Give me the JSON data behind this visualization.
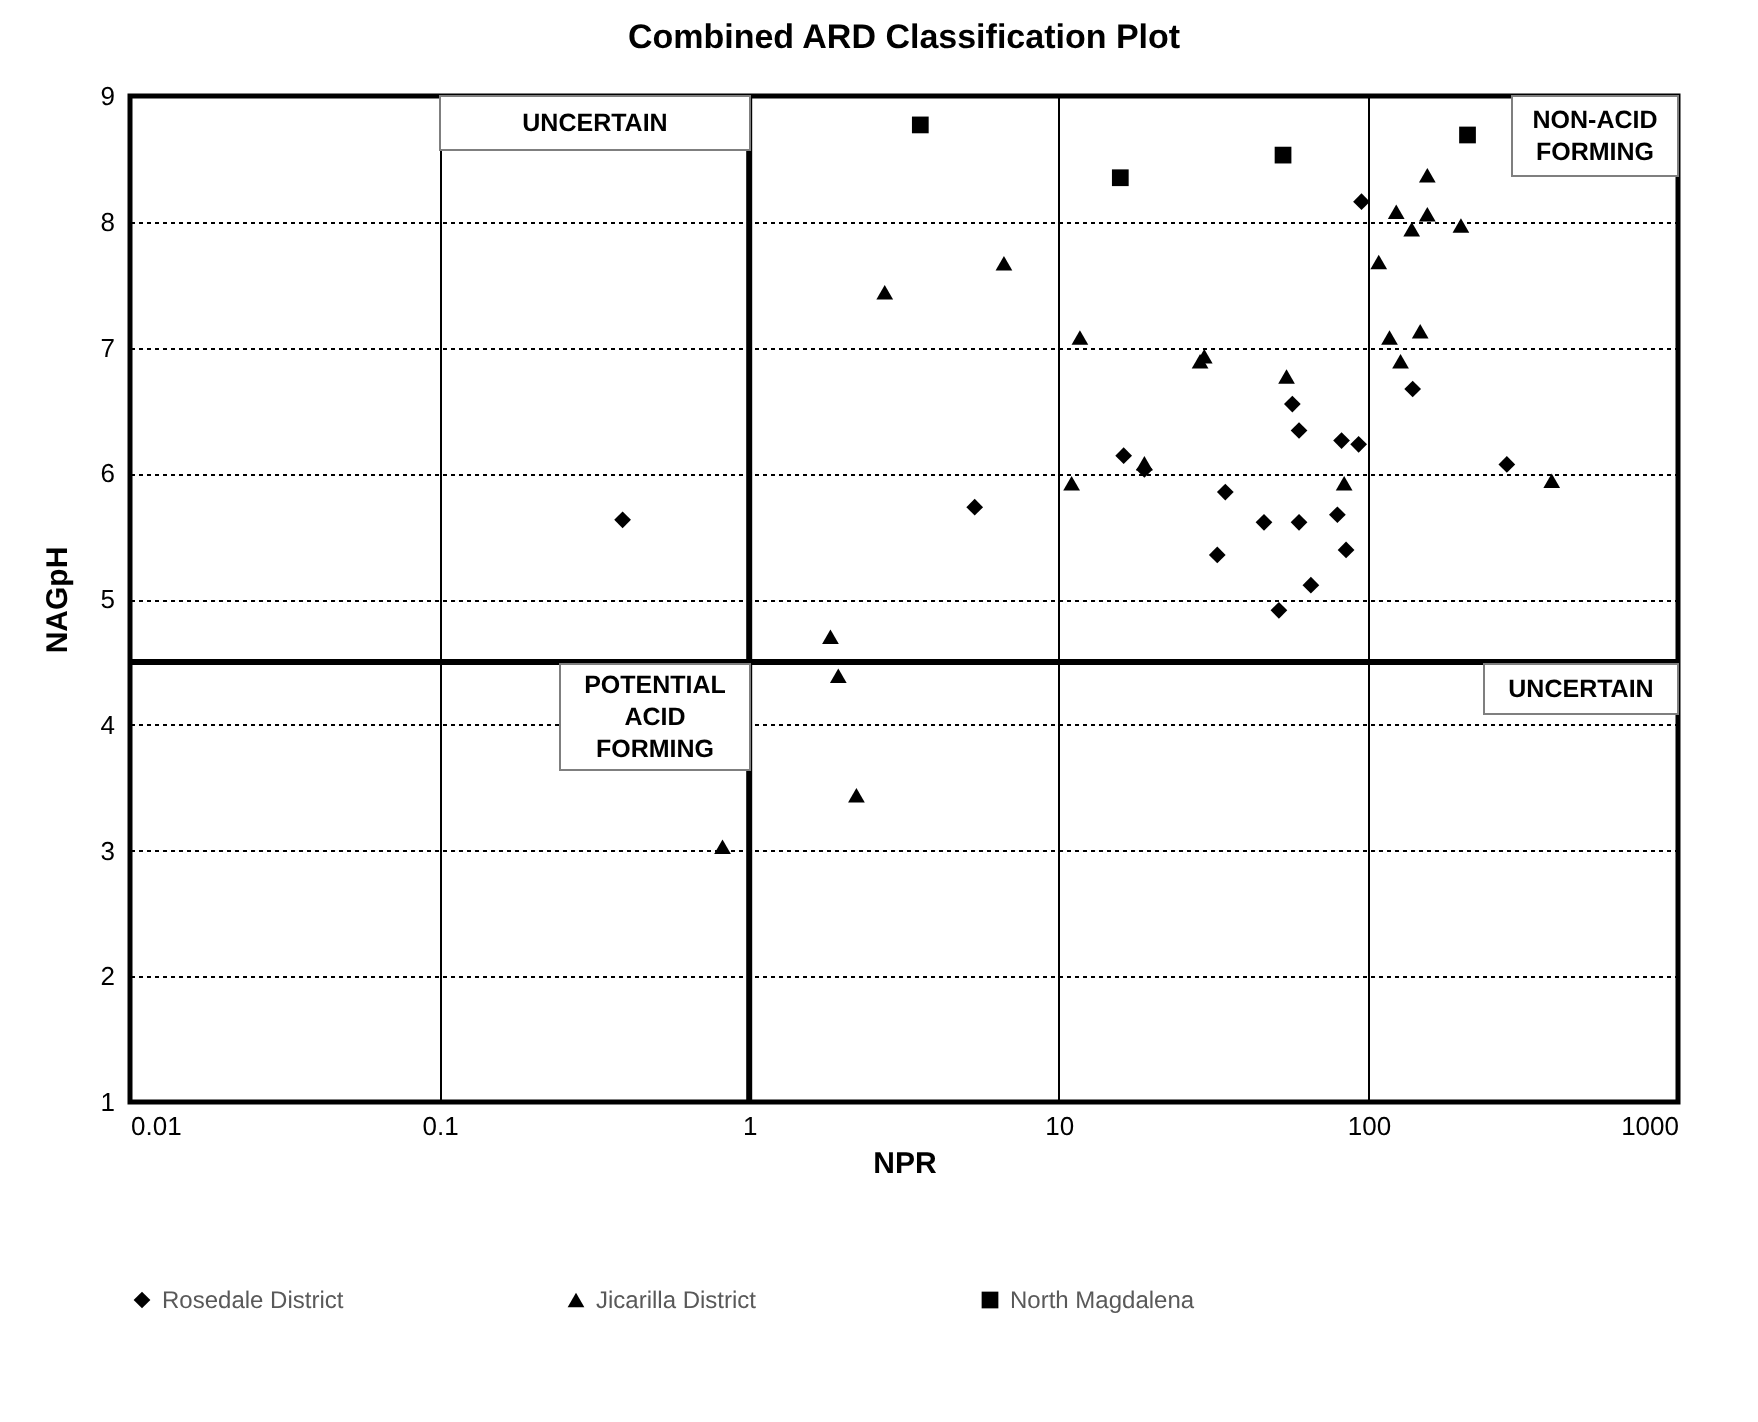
{
  "chart_data": {
    "type": "scatter",
    "title": "Combined ARD Classification Plot",
    "xlabel": "NPR",
    "ylabel": "NAGpH",
    "log": "x",
    "xlim": [
      0.01,
      1000
    ],
    "xticks": [
      0.01,
      0.1,
      1,
      10,
      100,
      1000
    ],
    "ylim": [
      1,
      9
    ],
    "yticks": [
      1,
      2,
      3,
      4,
      5,
      6,
      7,
      8,
      9
    ],
    "grid": true,
    "legend": "bottom",
    "ref_lines": [
      {
        "axis": "x",
        "value": 1,
        "color": "#000000"
      },
      {
        "axis": "y",
        "value": 4.5,
        "color": "#000000"
      }
    ],
    "annotations": [
      "UNCERTAIN",
      "NON-ACID FORMING",
      "POTENTIAL ACID FORMING",
      "UNCERTAIN"
    ],
    "series": [
      {
        "name": "Rosedale District",
        "color": "#000000",
        "marker": "diamond",
        "x": [
          0.39,
          5.35,
          16.2,
          18.9,
          34.5,
          32.5,
          46,
          51.4,
          56.8,
          59.7,
          59.7,
          65.2,
          79.4,
          81.9,
          84.7,
          93,
          95,
          139,
          280
        ],
        "values": [
          5.63,
          5.73,
          6.14,
          6.03,
          5.85,
          5.35,
          5.61,
          4.91,
          6.55,
          6.34,
          5.61,
          5.11,
          5.67,
          6.26,
          5.39,
          6.23,
          8.16,
          6.67,
          6.07
        ]
      },
      {
        "name": "Jicarilla District",
        "color": "#000000",
        "marker": "triangle",
        "x": [
          0.82,
          1.83,
          1.94,
          2.22,
          2.74,
          6.65,
          11.0,
          11.7,
          18.9,
          28.6,
          29.5,
          54.4,
          83.5,
          108,
          117,
          123,
          127,
          138,
          147,
          155,
          155,
          199,
          391
        ],
        "values": [
          3.03,
          4.7,
          4.39,
          3.44,
          7.44,
          7.67,
          5.92,
          7.08,
          6.08,
          6.89,
          6.93,
          6.77,
          5.92,
          7.68,
          7.08,
          8.08,
          6.89,
          7.94,
          7.13,
          8.37,
          8.06,
          7.97,
          5.94
        ]
      },
      {
        "name": "North Magdalena",
        "color": "#000000",
        "marker": "square",
        "x": [
          3.57,
          15.8,
          53,
          209
        ],
        "values": [
          8.77,
          8.35,
          8.53,
          8.69
        ]
      }
    ]
  }
}
